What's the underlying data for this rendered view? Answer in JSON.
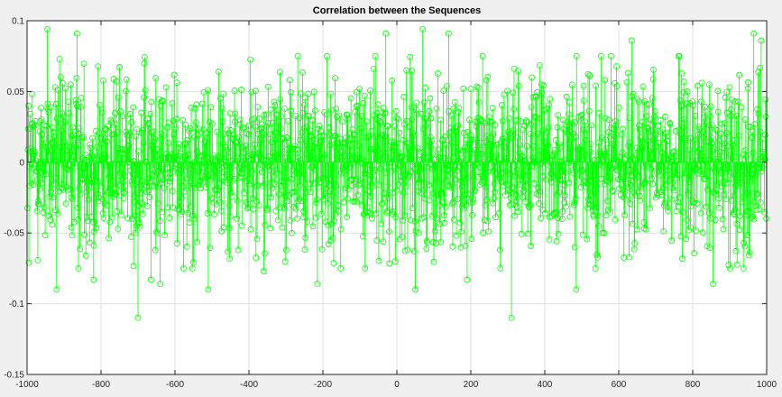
{
  "chart_data": {
    "type": "stem",
    "title": "Correlation between the Sequences",
    "xlabel": "",
    "ylabel": "",
    "xlim": [
      -1000,
      1000
    ],
    "ylim": [
      -0.15,
      0.1
    ],
    "xticks": [
      -1000,
      -800,
      -600,
      -400,
      -200,
      0,
      200,
      400,
      600,
      800,
      1000
    ],
    "yticks": [
      -0.15,
      -0.1,
      -0.05,
      0,
      0.05,
      0.1
    ],
    "xtick_labels": [
      "-1000",
      "-800",
      "-600",
      "-400",
      "-200",
      "0",
      "200",
      "400",
      "600",
      "800",
      "1000"
    ],
    "ytick_labels": [
      "-0.15",
      "-0.1",
      "-0.05",
      "0",
      "0.05",
      "0.1"
    ],
    "grid": true,
    "series": [
      {
        "color": "#00ff00",
        "marker": "circle-open",
        "x_range": [
          -999,
          999
        ],
        "x_step": 1,
        "typical_amplitude": 0.03,
        "notable_points": [
          {
            "x": -995,
            "y": -0.071
          },
          {
            "x": -945,
            "y": 0.094
          },
          {
            "x": -920,
            "y": -0.09
          },
          {
            "x": -865,
            "y": 0.091
          },
          {
            "x": -820,
            "y": -0.083
          },
          {
            "x": -700,
            "y": -0.11
          },
          {
            "x": -665,
            "y": -0.083
          },
          {
            "x": -640,
            "y": -0.086
          },
          {
            "x": -510,
            "y": -0.09
          },
          {
            "x": -360,
            "y": 0.086
          },
          {
            "x": -360,
            "y": -0.077
          },
          {
            "x": -215,
            "y": -0.086
          },
          {
            "x": -30,
            "y": 0.091
          },
          {
            "x": 70,
            "y": 0.094
          },
          {
            "x": 50,
            "y": -0.09
          },
          {
            "x": 140,
            "y": 0.091
          },
          {
            "x": 190,
            "y": -0.083
          },
          {
            "x": 310,
            "y": -0.11
          },
          {
            "x": 485,
            "y": -0.09
          },
          {
            "x": 635,
            "y": 0.086
          },
          {
            "x": 855,
            "y": -0.086
          },
          {
            "x": 965,
            "y": 0.091
          },
          {
            "x": 985,
            "y": 0.086
          }
        ]
      }
    ]
  }
}
